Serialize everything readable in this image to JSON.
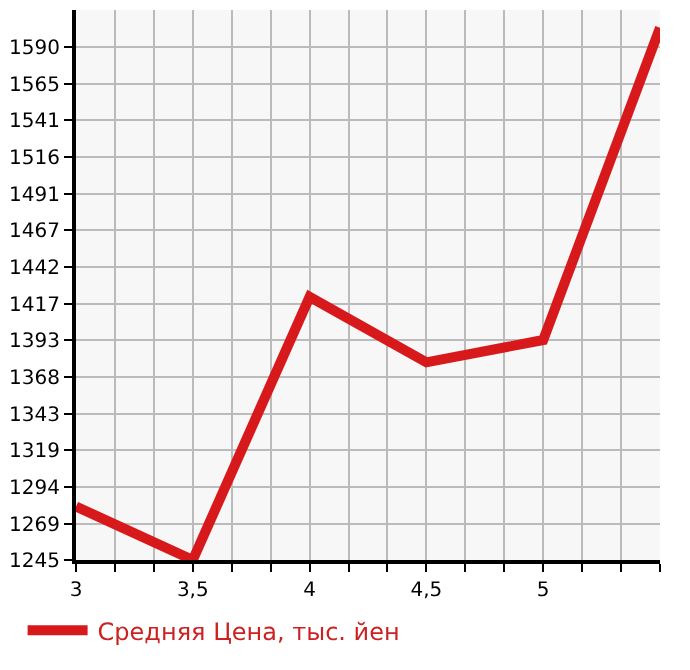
{
  "chart_data": {
    "type": "line",
    "x": [
      3,
      3.5,
      4,
      4.5,
      5,
      5.5
    ],
    "series": [
      {
        "name": "Средняя Цена, тыс. йен",
        "color": "#d7191c",
        "values": [
          1281,
          1245,
          1422,
          1378,
          1393,
          1603
        ]
      }
    ],
    "xlim": [
      3,
      5.5
    ],
    "xticks": [
      3,
      {
        "value": 3.167,
        "label": null
      },
      {
        "value": 3.333,
        "label": null
      },
      {
        "value": 3.5,
        "label": "3,5"
      },
      {
        "value": 3.667,
        "label": null
      },
      {
        "value": 3.833,
        "label": null
      },
      4,
      {
        "value": 4.167,
        "label": null
      },
      {
        "value": 4.333,
        "label": null
      },
      {
        "value": 4.5,
        "label": "4,5"
      },
      {
        "value": 4.667,
        "label": null
      },
      {
        "value": 4.833,
        "label": null
      },
      5,
      {
        "value": 5.167,
        "label": null
      },
      {
        "value": 5.333,
        "label": null
      },
      {
        "value": 5.5,
        "label": null
      }
    ],
    "ylim": [
      1245,
      1615
    ],
    "yticks": [
      1245,
      1269,
      1294,
      1319,
      1343,
      1368,
      1393,
      1417,
      1442,
      1467,
      1491,
      1516,
      1541,
      1565,
      1590
    ],
    "grid": true,
    "legend": "bottom",
    "marker": "none",
    "line_style": "solid"
  }
}
